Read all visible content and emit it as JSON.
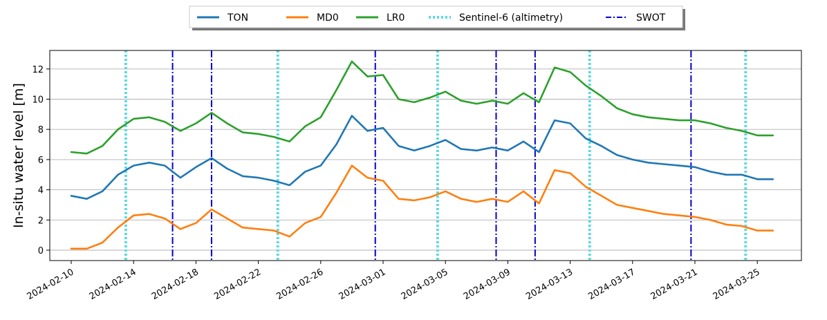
{
  "chart_data": {
    "type": "line",
    "title": "",
    "xlabel": "",
    "ylabel": "In-situ water level [m]",
    "x_start": "2024-02-10",
    "x_end": "2024-03-26",
    "ylim": [
      -0.6,
      13.2
    ],
    "yticks": [
      0,
      2,
      4,
      6,
      8,
      10,
      12
    ],
    "xticks": [
      "2024-02-10",
      "2024-02-14",
      "2024-02-18",
      "2024-02-22",
      "2024-02-26",
      "2024-03-01",
      "2024-03-05",
      "2024-03-09",
      "2024-03-13",
      "2024-03-17",
      "2024-03-21",
      "2024-03-25"
    ],
    "grid": "horizontal",
    "legend_position": "top-center",
    "series": [
      {
        "name": "TON",
        "color": "#1f77b4",
        "x": [
          "2024-02-10",
          "2024-02-11",
          "2024-02-12",
          "2024-02-13",
          "2024-02-14",
          "2024-02-15",
          "2024-02-16",
          "2024-02-17",
          "2024-02-18",
          "2024-02-19",
          "2024-02-20",
          "2024-02-21",
          "2024-02-22",
          "2024-02-23",
          "2024-02-24",
          "2024-02-25",
          "2024-02-26",
          "2024-02-27",
          "2024-02-28",
          "2024-02-29",
          "2024-03-01",
          "2024-03-02",
          "2024-03-03",
          "2024-03-04",
          "2024-03-05",
          "2024-03-06",
          "2024-03-07",
          "2024-03-08",
          "2024-03-09",
          "2024-03-10",
          "2024-03-11",
          "2024-03-12",
          "2024-03-13",
          "2024-03-14",
          "2024-03-15",
          "2024-03-16",
          "2024-03-17",
          "2024-03-18",
          "2024-03-19",
          "2024-03-20",
          "2024-03-21",
          "2024-03-22",
          "2024-03-23",
          "2024-03-24",
          "2024-03-25",
          "2024-03-26"
        ],
        "values": [
          3.6,
          3.4,
          3.9,
          5.0,
          5.6,
          5.8,
          5.6,
          4.8,
          5.5,
          6.1,
          5.4,
          4.9,
          4.8,
          4.6,
          4.3,
          5.2,
          5.6,
          7.0,
          8.9,
          7.9,
          8.1,
          6.9,
          6.6,
          6.9,
          7.3,
          6.7,
          6.6,
          6.8,
          6.6,
          7.2,
          6.5,
          8.6,
          8.4,
          7.4,
          6.9,
          6.3,
          6.0,
          5.8,
          5.7,
          5.6,
          5.5,
          5.2,
          5.0,
          5.0,
          4.7,
          4.7
        ]
      },
      {
        "name": "MD0",
        "color": "#ff7f0e",
        "x": [
          "2024-02-10",
          "2024-02-11",
          "2024-02-12",
          "2024-02-13",
          "2024-02-14",
          "2024-02-15",
          "2024-02-16",
          "2024-02-17",
          "2024-02-18",
          "2024-02-19",
          "2024-02-20",
          "2024-02-21",
          "2024-02-22",
          "2024-02-23",
          "2024-02-24",
          "2024-02-25",
          "2024-02-26",
          "2024-02-27",
          "2024-02-28",
          "2024-02-29",
          "2024-03-01",
          "2024-03-02",
          "2024-03-03",
          "2024-03-04",
          "2024-03-05",
          "2024-03-06",
          "2024-03-07",
          "2024-03-08",
          "2024-03-09",
          "2024-03-10",
          "2024-03-11",
          "2024-03-12",
          "2024-03-13",
          "2024-03-14",
          "2024-03-15",
          "2024-03-16",
          "2024-03-17",
          "2024-03-18",
          "2024-03-19",
          "2024-03-20",
          "2024-03-21",
          "2024-03-22",
          "2024-03-23",
          "2024-03-24",
          "2024-03-25",
          "2024-03-26"
        ],
        "values": [
          0.1,
          0.1,
          0.5,
          1.5,
          2.3,
          2.4,
          2.1,
          1.4,
          1.8,
          2.7,
          2.1,
          1.5,
          1.4,
          1.3,
          0.9,
          1.8,
          2.2,
          3.8,
          5.6,
          4.8,
          4.6,
          3.4,
          3.3,
          3.5,
          3.9,
          3.4,
          3.2,
          3.4,
          3.2,
          3.9,
          3.1,
          5.3,
          5.1,
          4.2,
          3.6,
          3.0,
          2.8,
          2.6,
          2.4,
          2.3,
          2.2,
          2.0,
          1.7,
          1.6,
          1.3,
          1.3
        ]
      },
      {
        "name": "LR0",
        "color": "#2ca02c",
        "x": [
          "2024-02-10",
          "2024-02-11",
          "2024-02-12",
          "2024-02-13",
          "2024-02-14",
          "2024-02-15",
          "2024-02-16",
          "2024-02-17",
          "2024-02-18",
          "2024-02-19",
          "2024-02-20",
          "2024-02-21",
          "2024-02-22",
          "2024-02-23",
          "2024-02-24",
          "2024-02-25",
          "2024-02-26",
          "2024-02-27",
          "2024-02-28",
          "2024-02-29",
          "2024-03-01",
          "2024-03-02",
          "2024-03-03",
          "2024-03-04",
          "2024-03-05",
          "2024-03-06",
          "2024-03-07",
          "2024-03-08",
          "2024-03-09",
          "2024-03-10",
          "2024-03-11",
          "2024-03-12",
          "2024-03-13",
          "2024-03-14",
          "2024-03-15",
          "2024-03-16",
          "2024-03-17",
          "2024-03-18",
          "2024-03-19",
          "2024-03-20",
          "2024-03-21",
          "2024-03-22",
          "2024-03-23",
          "2024-03-24",
          "2024-03-25",
          "2024-03-26"
        ],
        "values": [
          6.5,
          6.4,
          6.9,
          8.0,
          8.7,
          8.8,
          8.5,
          7.9,
          8.4,
          9.1,
          8.4,
          7.8,
          7.7,
          7.5,
          7.2,
          8.2,
          8.8,
          10.6,
          12.5,
          11.5,
          11.6,
          10.0,
          9.8,
          10.1,
          10.5,
          9.9,
          9.7,
          9.9,
          9.7,
          10.4,
          9.8,
          12.1,
          11.8,
          10.9,
          10.2,
          9.4,
          9.0,
          8.8,
          8.7,
          8.6,
          8.6,
          8.4,
          8.1,
          7.9,
          7.6,
          7.6
        ]
      },
      {
        "name": "Sentinel-6 (altimetry)",
        "color": "#5bdae0",
        "style": "dotted",
        "dates": [
          "2024-02-13T12:00",
          "2024-02-23T06:00",
          "2024-03-04T12:00",
          "2024-03-14T06:00",
          "2024-03-24T06:00"
        ]
      },
      {
        "name": "SWOT",
        "color": "#0000cc",
        "style": "dashdot",
        "dates": [
          "2024-02-16T12:00",
          "2024-02-19T00:00",
          "2024-02-29T12:00",
          "2024-03-08T06:00",
          "2024-03-10T18:00",
          "2024-03-20T18:00"
        ]
      }
    ]
  }
}
